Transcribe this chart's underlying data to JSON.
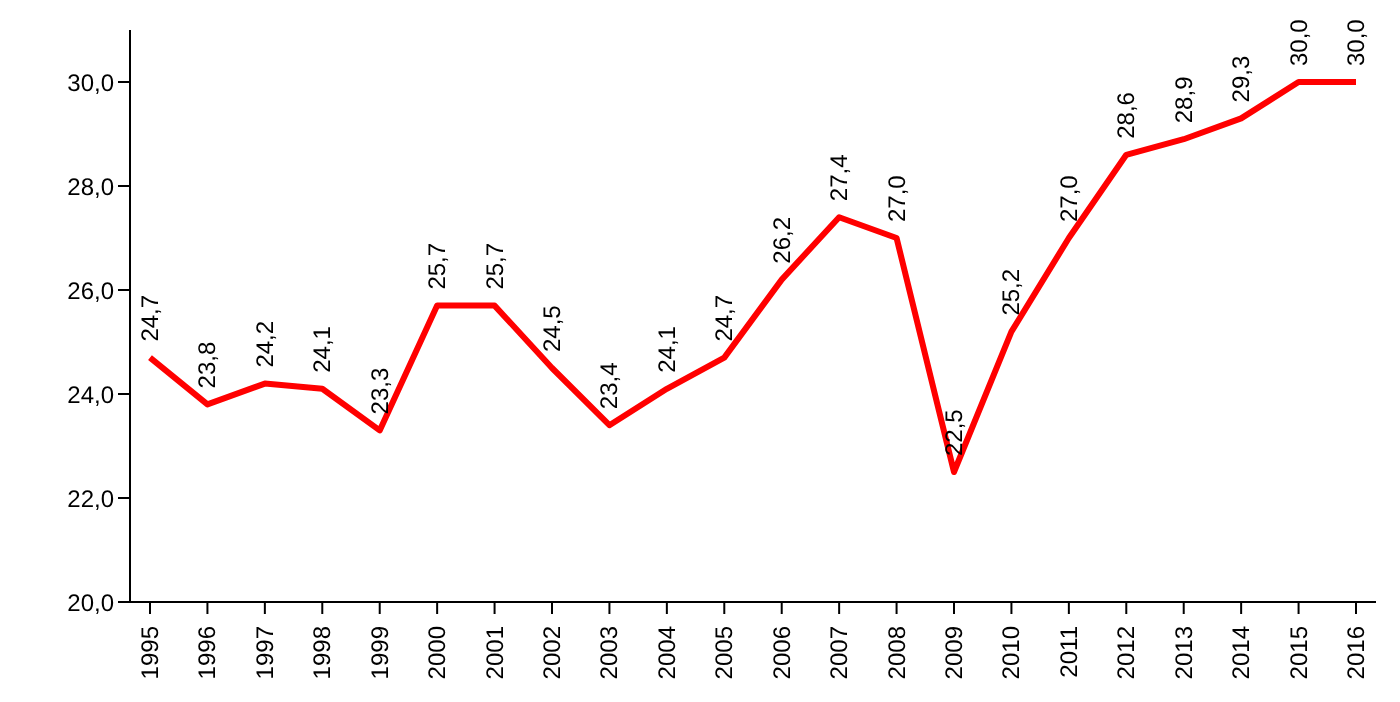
{
  "chart_data": {
    "type": "line",
    "categories": [
      "1995",
      "1996",
      "1997",
      "1998",
      "1999",
      "2000",
      "2001",
      "2002",
      "2003",
      "2004",
      "2005",
      "2006",
      "2007",
      "2008",
      "2009",
      "2010",
      "2011",
      "2012",
      "2013",
      "2014",
      "2015",
      "2016"
    ],
    "series": [
      {
        "color": "#ff0000",
        "values": [
          24.7,
          23.8,
          24.2,
          24.1,
          23.3,
          25.7,
          25.7,
          24.5,
          23.4,
          24.1,
          24.7,
          26.2,
          27.4,
          27.0,
          22.5,
          25.2,
          27.0,
          28.6,
          28.9,
          29.3,
          30.0,
          30.0
        ],
        "value_labels": [
          "24,7",
          "23,8",
          "24,2",
          "24,1",
          "23,3",
          "25,7",
          "25,7",
          "24,5",
          "23,4",
          "24,1",
          "24,7",
          "26,2",
          "27,4",
          "27,0",
          "22,5",
          "25,2",
          "27,0",
          "28,6",
          "28,9",
          "29,3",
          "30,0",
          "30,0"
        ]
      }
    ],
    "ylim": [
      20,
      31
    ],
    "yticks": [
      {
        "value": 20,
        "label": "20,0"
      },
      {
        "value": 22,
        "label": "22,0"
      },
      {
        "value": 24,
        "label": "24,0"
      },
      {
        "value": 26,
        "label": "26,0"
      },
      {
        "value": 28,
        "label": "28,0"
      },
      {
        "value": 30,
        "label": "30,0"
      }
    ],
    "grid": false,
    "legend": false,
    "marker": "none",
    "line_style": "solid"
  }
}
